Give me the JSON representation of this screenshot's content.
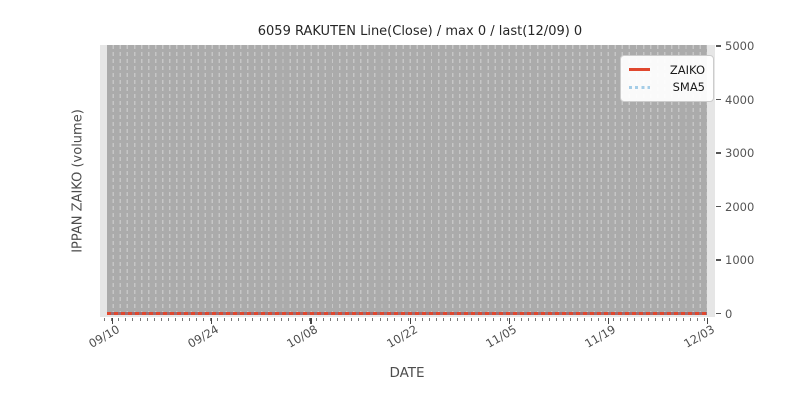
{
  "chart_data": {
    "type": "line",
    "title": "6059 RAKUTEN Line(Close) / max 0 / last(12/09) 0",
    "xlabel": "DATE",
    "ylabel": "IPPAN ZAIKO (volume)",
    "x_tick_labels": [
      "09/10",
      "09/24",
      "10/08",
      "10/22",
      "11/05",
      "11/19",
      "12/03"
    ],
    "x_minor_ticks": "daily",
    "y_ticks": [
      0,
      1000,
      2000,
      3000,
      4000,
      5000
    ],
    "ylim": [
      0,
      5100
    ],
    "grid": "vertical dashed daily gridlines on gray plot background",
    "legend_position": "upper right",
    "series": [
      {
        "name": "ZAIKO",
        "line_style": "solid",
        "color": "#e0472e",
        "x": [
          "09/10",
          "09/24",
          "10/08",
          "10/22",
          "11/05",
          "11/19",
          "12/03",
          "12/09"
        ],
        "values": [
          0,
          0,
          0,
          0,
          0,
          0,
          0,
          0
        ]
      },
      {
        "name": "SMA5",
        "line_style": "dotted",
        "color": "#a5cde7",
        "x": [
          "09/10",
          "09/24",
          "10/08",
          "10/22",
          "11/05",
          "11/19",
          "12/03",
          "12/09"
        ],
        "values": [
          0,
          0,
          0,
          0,
          0,
          0,
          0,
          0
        ]
      }
    ],
    "stats_in_title": {
      "max": 0,
      "last_date": "12/09",
      "last_value": 0
    }
  },
  "colors": {
    "axes_bg": "#e6e6e6",
    "plot_fill": "#ababab",
    "grid_dash": "#c6c6c6",
    "zaiko_red": "#e0472e",
    "sma5_blue": "#a5cde7",
    "legend_border": "#cccccc",
    "tick_text": "#555555",
    "title_text": "#262626"
  }
}
